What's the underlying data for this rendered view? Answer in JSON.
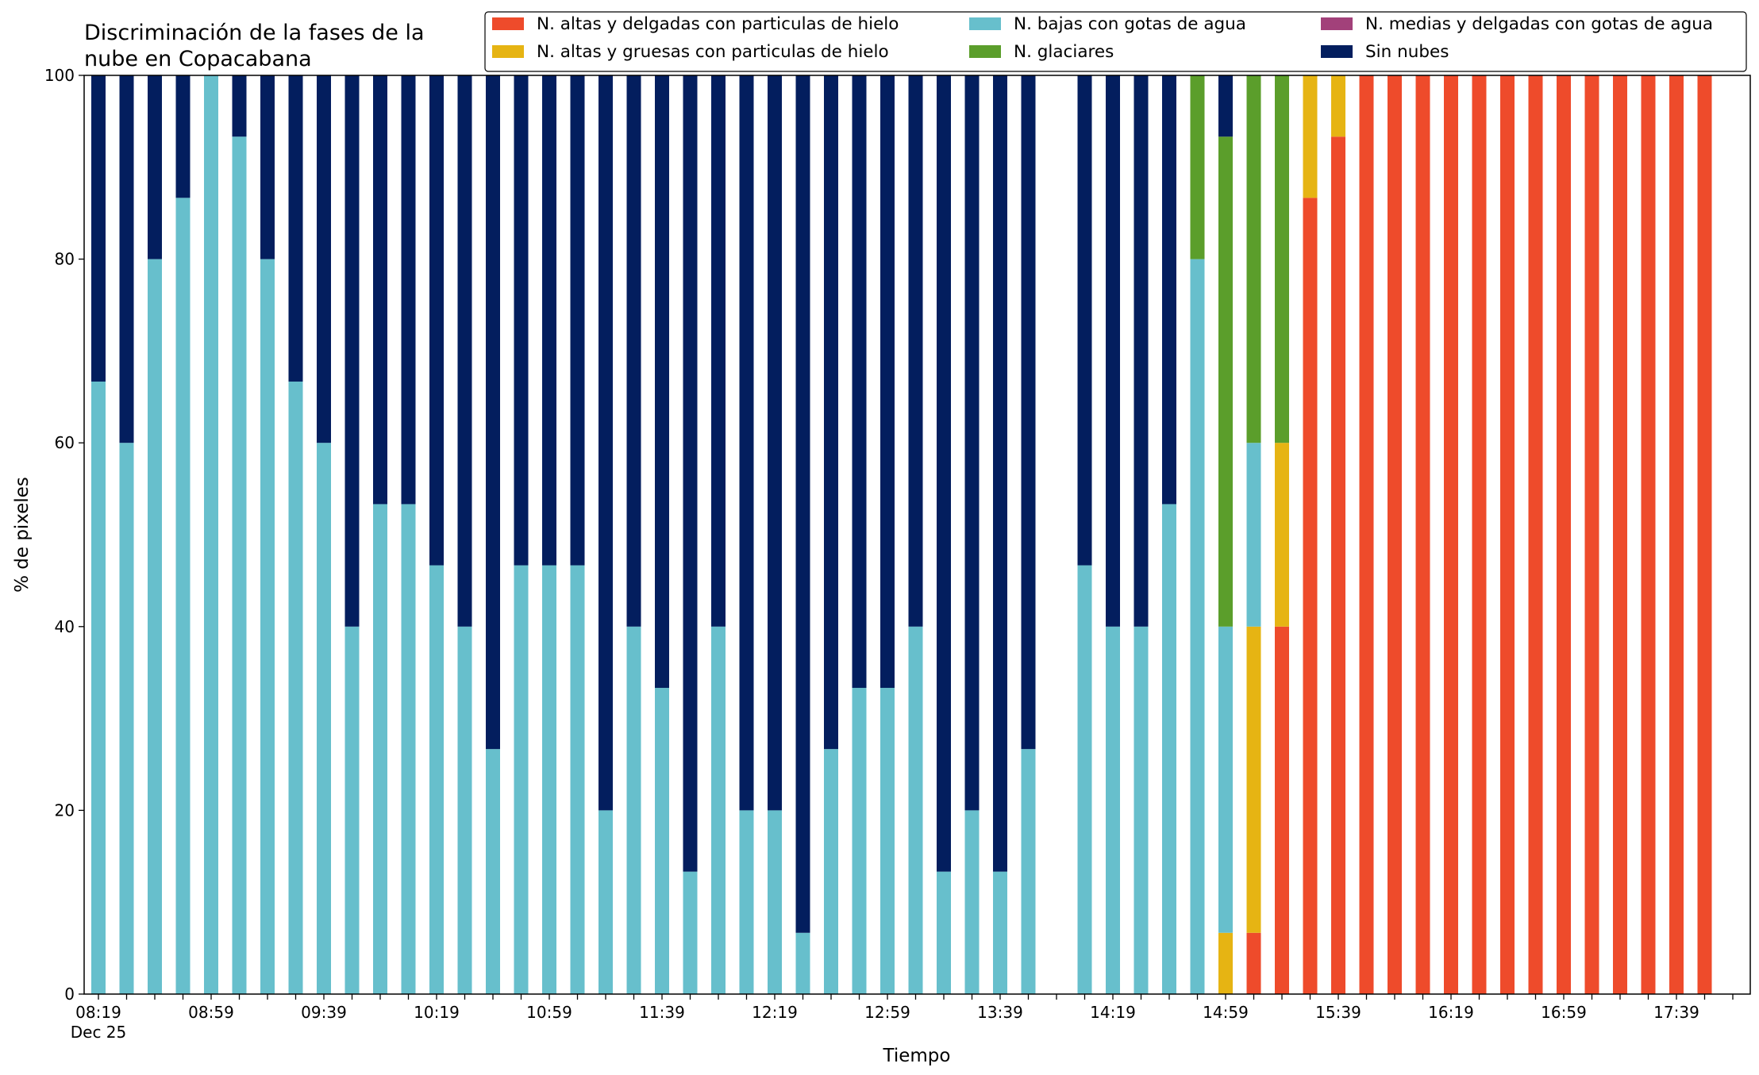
{
  "chart_data": {
    "type": "bar",
    "stacked": true,
    "title": [
      "Discriminación de la fases de la",
      "nube en Copacabana"
    ],
    "xlabel": "Tiempo",
    "ylabel": "% de pixeles",
    "ylim": [
      0,
      100
    ],
    "yticks": [
      0,
      20,
      40,
      60,
      80,
      100
    ],
    "grid": false,
    "legend_position": "top-right",
    "x_start": "08:19",
    "x_step_minutes": 10,
    "x_count": 58,
    "xtick_labels": [
      {
        "index": 0,
        "label": "08:19",
        "sublabel": "Dec 25"
      },
      {
        "index": 4,
        "label": "08:59"
      },
      {
        "index": 8,
        "label": "09:39"
      },
      {
        "index": 12,
        "label": "10:19"
      },
      {
        "index": 16,
        "label": "10:59"
      },
      {
        "index": 20,
        "label": "11:39"
      },
      {
        "index": 24,
        "label": "12:19"
      },
      {
        "index": 28,
        "label": "12:59"
      },
      {
        "index": 32,
        "label": "13:39"
      },
      {
        "index": 36,
        "label": "14:19"
      },
      {
        "index": 40,
        "label": "14:59"
      },
      {
        "index": 44,
        "label": "15:39"
      },
      {
        "index": 48,
        "label": "16:19"
      },
      {
        "index": 52,
        "label": "16:59"
      },
      {
        "index": 56,
        "label": "17:39"
      }
    ],
    "legend_entries": [
      {
        "name": "N. altas y delgadas con particulas de hielo",
        "color": "#ee4b2b"
      },
      {
        "name": "N. altas y gruesas con particulas de hielo",
        "color": "#e6b413"
      },
      {
        "name": "N. bajas con gotas de agua",
        "color": "#67bfcc"
      },
      {
        "name": "N. glaciares",
        "color": "#5b9e2b"
      },
      {
        "name": "N. medias y delgadas con gotas de agua",
        "color": "#a2417a"
      },
      {
        "name": "Sin nubes",
        "color": "#031e5e"
      }
    ],
    "series": [
      {
        "name": "N. altas y delgadas con particulas de hielo",
        "color": "#ee4b2b",
        "values": [
          0,
          0,
          0,
          0,
          0,
          0,
          0,
          0,
          0,
          0,
          0,
          0,
          0,
          0,
          0,
          0,
          0,
          0,
          0,
          0,
          0,
          0,
          0,
          0,
          0,
          0,
          0,
          0,
          0,
          0,
          0,
          0,
          0,
          0,
          null,
          0,
          0,
          0,
          0,
          0,
          0,
          6.67,
          40,
          86.67,
          93.33,
          100,
          100,
          100,
          100,
          100,
          100,
          100,
          100,
          100,
          100,
          100,
          100,
          100
        ]
      },
      {
        "name": "N. altas y gruesas con particulas de hielo",
        "color": "#e6b413",
        "values": [
          0,
          0,
          0,
          0,
          0,
          0,
          0,
          0,
          0,
          0,
          0,
          0,
          0,
          0,
          0,
          0,
          0,
          0,
          0,
          0,
          0,
          0,
          0,
          0,
          0,
          0,
          0,
          0,
          0,
          0,
          0,
          0,
          0,
          0,
          null,
          0,
          0,
          0,
          0,
          0,
          6.67,
          33.33,
          20,
          13.33,
          6.67,
          0,
          0,
          0,
          0,
          0,
          0,
          0,
          0,
          0,
          0,
          0,
          0,
          0
        ]
      },
      {
        "name": "N. bajas con gotas de agua",
        "color": "#67bfcc",
        "values": [
          66.67,
          60,
          80,
          86.67,
          100,
          93.33,
          80,
          66.67,
          60,
          40,
          53.33,
          53.33,
          46.67,
          40,
          26.67,
          46.67,
          46.67,
          46.67,
          20,
          40,
          33.33,
          13.33,
          40,
          20,
          20,
          6.67,
          26.67,
          33.33,
          33.33,
          40,
          13.33,
          20,
          13.33,
          26.67,
          null,
          46.67,
          40,
          40,
          53.33,
          80,
          33.33,
          20,
          0,
          0,
          0,
          0,
          0,
          0,
          0,
          0,
          0,
          0,
          0,
          0,
          0,
          0,
          0,
          0
        ]
      },
      {
        "name": "N. glaciares",
        "color": "#5b9e2b",
        "values": [
          0,
          0,
          0,
          0,
          0,
          0,
          0,
          0,
          0,
          0,
          0,
          0,
          0,
          0,
          0,
          0,
          0,
          0,
          0,
          0,
          0,
          0,
          0,
          0,
          0,
          0,
          0,
          0,
          0,
          0,
          0,
          0,
          0,
          0,
          null,
          0,
          0,
          0,
          0,
          20,
          53.33,
          40,
          40,
          0,
          0,
          0,
          0,
          0,
          0,
          0,
          0,
          0,
          0,
          0,
          0,
          0,
          0,
          0
        ]
      },
      {
        "name": "N. medias y delgadas con gotas de agua",
        "color": "#a2417a",
        "values": [
          0,
          0,
          0,
          0,
          0,
          0,
          0,
          0,
          0,
          0,
          0,
          0,
          0,
          0,
          0,
          0,
          0,
          0,
          0,
          0,
          0,
          0,
          0,
          0,
          0,
          0,
          0,
          0,
          0,
          0,
          0,
          0,
          0,
          0,
          null,
          0,
          0,
          0,
          0,
          0,
          0,
          0,
          0,
          0,
          0,
          0,
          0,
          0,
          0,
          0,
          0,
          0,
          0,
          0,
          0,
          0,
          0,
          0
        ]
      },
      {
        "name": "Sin nubes",
        "color": "#031e5e",
        "values": [
          33.33,
          40,
          20,
          13.33,
          0,
          6.67,
          20,
          33.33,
          40,
          60,
          46.67,
          46.67,
          53.33,
          60,
          73.33,
          53.33,
          53.33,
          53.33,
          80,
          60,
          66.67,
          86.67,
          60,
          80,
          80,
          93.33,
          73.33,
          66.67,
          66.67,
          60,
          86.67,
          80,
          86.67,
          73.33,
          null,
          53.33,
          60,
          60,
          46.67,
          0,
          6.67,
          0,
          0,
          0,
          0,
          0,
          0,
          0,
          0,
          0,
          0,
          0,
          0,
          0,
          0,
          0,
          0,
          0
        ]
      }
    ]
  }
}
